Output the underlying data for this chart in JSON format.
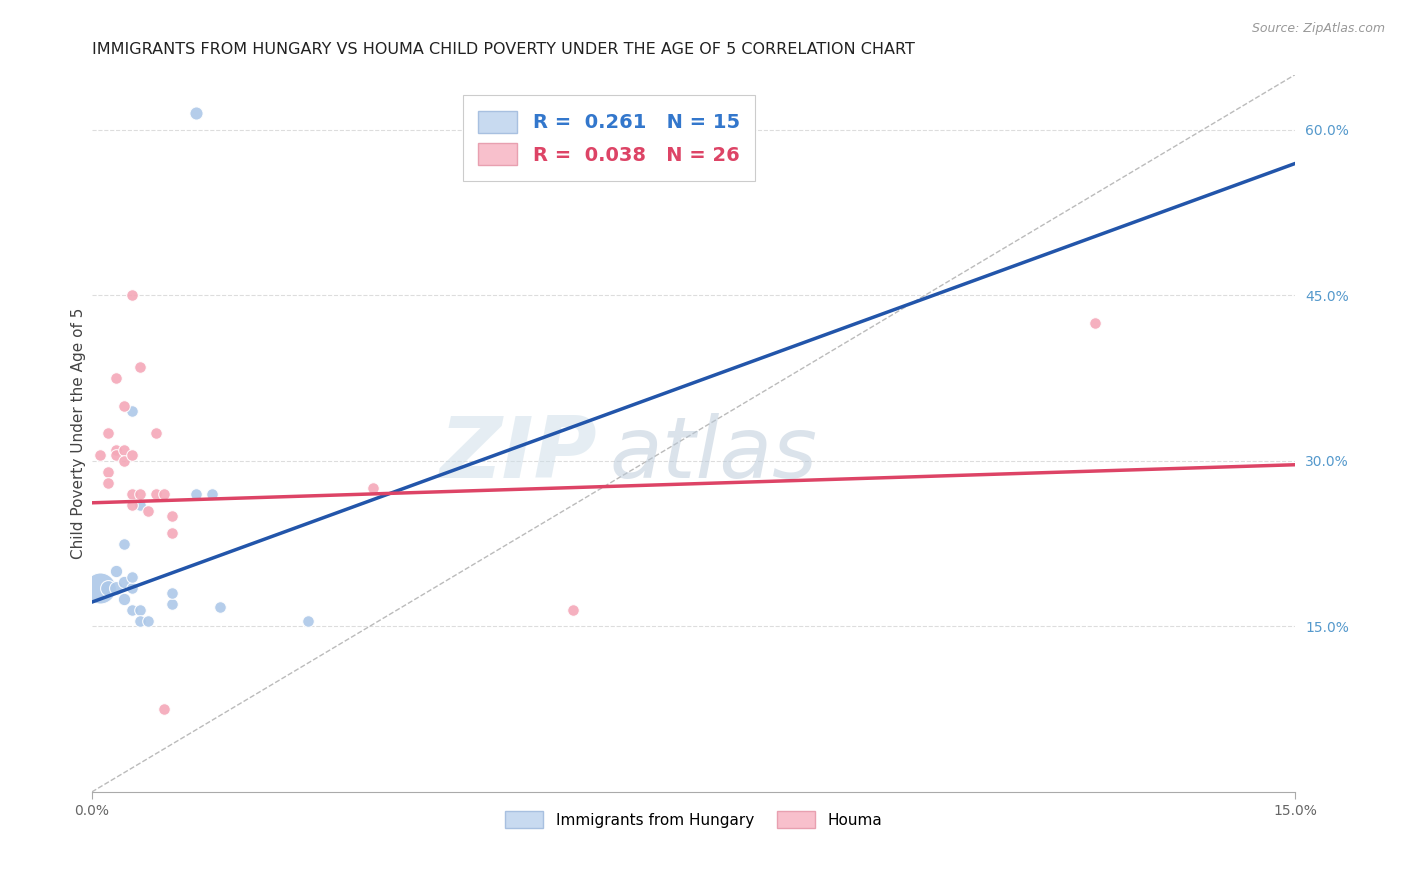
{
  "title": "IMMIGRANTS FROM HUNGARY VS HOUMA CHILD POVERTY UNDER THE AGE OF 5 CORRELATION CHART",
  "source": "Source: ZipAtlas.com",
  "ylabel": "Child Poverty Under the Age of 5",
  "xlim": [
    0.0,
    0.15
  ],
  "ylim": [
    0.0,
    0.65
  ],
  "yticks_right": [
    0.15,
    0.3,
    0.45,
    0.6
  ],
  "ytick_labels_right": [
    "15.0%",
    "30.0%",
    "45.0%",
    "60.0%"
  ],
  "blue_color": "#adc8e8",
  "pink_color": "#f4a8b8",
  "blue_line_color": "#2255aa",
  "pink_line_color": "#dd4466",
  "diag_color": "#bbbbbb",
  "watermark_zip": "ZIP",
  "watermark_atlas": "atlas",
  "hungary_points": [
    [
      0.001,
      0.185,
      500
    ],
    [
      0.002,
      0.185,
      130
    ],
    [
      0.003,
      0.185,
      100
    ],
    [
      0.003,
      0.2,
      80
    ],
    [
      0.004,
      0.19,
      80
    ],
    [
      0.004,
      0.175,
      80
    ],
    [
      0.004,
      0.225,
      70
    ],
    [
      0.005,
      0.185,
      70
    ],
    [
      0.005,
      0.195,
      70
    ],
    [
      0.005,
      0.165,
      70
    ],
    [
      0.005,
      0.345,
      70
    ],
    [
      0.006,
      0.26,
      70
    ],
    [
      0.006,
      0.165,
      70
    ],
    [
      0.006,
      0.155,
      70
    ],
    [
      0.007,
      0.155,
      70
    ],
    [
      0.01,
      0.17,
      70
    ],
    [
      0.01,
      0.18,
      70
    ],
    [
      0.013,
      0.27,
      70
    ],
    [
      0.015,
      0.27,
      70
    ],
    [
      0.016,
      0.168,
      70
    ],
    [
      0.027,
      0.155,
      70
    ],
    [
      0.013,
      0.615,
      90
    ]
  ],
  "houma_points": [
    [
      0.001,
      0.305,
      70
    ],
    [
      0.002,
      0.29,
      70
    ],
    [
      0.002,
      0.28,
      70
    ],
    [
      0.002,
      0.325,
      70
    ],
    [
      0.003,
      0.31,
      70
    ],
    [
      0.003,
      0.375,
      70
    ],
    [
      0.003,
      0.305,
      70
    ],
    [
      0.004,
      0.31,
      70
    ],
    [
      0.004,
      0.3,
      70
    ],
    [
      0.004,
      0.35,
      70
    ],
    [
      0.005,
      0.45,
      70
    ],
    [
      0.005,
      0.305,
      70
    ],
    [
      0.005,
      0.27,
      70
    ],
    [
      0.005,
      0.26,
      70
    ],
    [
      0.006,
      0.385,
      70
    ],
    [
      0.006,
      0.27,
      70
    ],
    [
      0.007,
      0.255,
      70
    ],
    [
      0.008,
      0.325,
      70
    ],
    [
      0.008,
      0.27,
      70
    ],
    [
      0.009,
      0.27,
      70
    ],
    [
      0.009,
      0.075,
      70
    ],
    [
      0.01,
      0.25,
      70
    ],
    [
      0.01,
      0.235,
      70
    ],
    [
      0.035,
      0.275,
      70
    ],
    [
      0.06,
      0.165,
      70
    ],
    [
      0.125,
      0.425,
      70
    ]
  ],
  "hungary_intercept": 0.172,
  "hungary_slope": 2.65,
  "houma_intercept": 0.262,
  "houma_slope": 0.23
}
